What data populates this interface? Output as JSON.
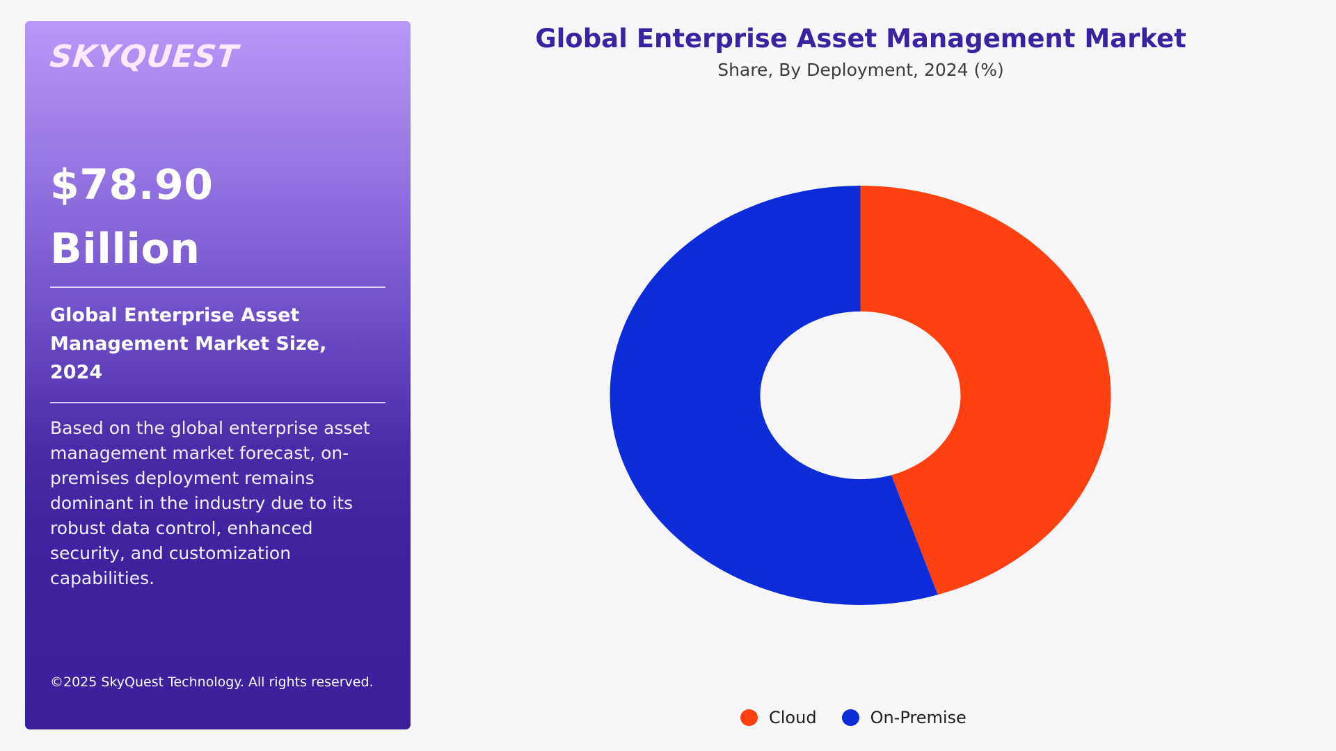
{
  "panel": {
    "logo": "SKYQUEST",
    "market_value_line1": "$78.90",
    "market_value_line2": "Billion",
    "size_label": "Global Enterprise Asset Management Market Size, 2024",
    "description": "Based on the global enterprise asset management market forecast, on-premises deployment remains dominant in the industry due to its robust data control, enhanced security, and customization capabilities.",
    "copyright": "©2025 SkyQuest Technology. All rights reserved."
  },
  "chart": {
    "title": "Global Enterprise Asset Management Market",
    "subtitle": "Share, By Deployment, 2024 (%)"
  },
  "legend": {
    "items": [
      {
        "label": "Cloud",
        "color": "#ff4010"
      },
      {
        "label": "On-Premise",
        "color": "#0b2cd8"
      }
    ]
  },
  "colors": {
    "cloud": "#ff4010",
    "on_premise": "#0b2cd8",
    "title": "#3a22a0",
    "background": "#f7f7fa"
  },
  "chart_data": {
    "type": "pie",
    "variant": "donut",
    "title": "Global Enterprise Asset Management Market",
    "subtitle": "Share, By Deployment, 2024 (%)",
    "categories": [
      "Cloud",
      "On-Premise"
    ],
    "values": [
      45,
      55
    ],
    "colors": [
      "#ff4010",
      "#0b2cd8"
    ],
    "start_angle_deg": 0,
    "direction": "clockwise",
    "inner_radius_ratio": 0.4,
    "legend_position": "bottom",
    "data_labels": false
  }
}
